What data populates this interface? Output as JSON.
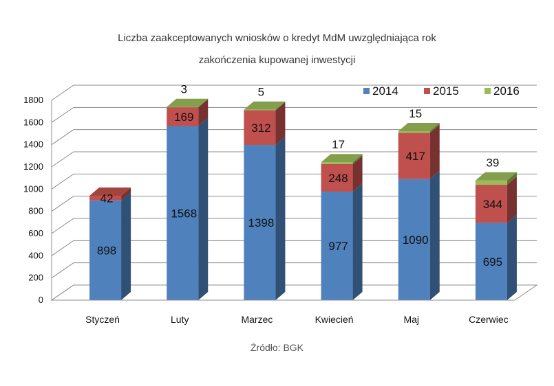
{
  "title_line1": "Liczba zaakceptowanych wniosków o kredyt MdM uwzględniająca rok",
  "title_line2": "zakończenia kupowanej inwestycji",
  "source": "Źródło: BGK",
  "chart_data": {
    "type": "bar",
    "stacked": true,
    "three_d": true,
    "categories": [
      "Styczeń",
      "Luty",
      "Marzec",
      "Kwiecień",
      "Maj",
      "Czerwiec"
    ],
    "series": [
      {
        "name": "2014",
        "color": "#4f81bd",
        "values": [
          898,
          1568,
          1398,
          977,
          1090,
          695
        ]
      },
      {
        "name": "2015",
        "color": "#c0504d",
        "values": [
          42,
          169,
          312,
          248,
          417,
          344
        ]
      },
      {
        "name": "2016",
        "color": "#9bbb59",
        "values": [
          0,
          3,
          5,
          17,
          15,
          39
        ]
      }
    ],
    "data_labels": [
      [
        "898",
        "1568",
        "1398",
        "977",
        "1090",
        "695"
      ],
      [
        "42",
        "169",
        "312",
        "248",
        "417",
        "344"
      ],
      [
        "",
        "3",
        "5",
        "17",
        "15",
        "39"
      ]
    ],
    "ylim": [
      0,
      1800
    ],
    "yticks": [
      "0",
      "200",
      "400",
      "600",
      "800",
      "1000",
      "1200",
      "1400",
      "1600",
      "1800"
    ],
    "grid": true,
    "legend": "top-right"
  }
}
